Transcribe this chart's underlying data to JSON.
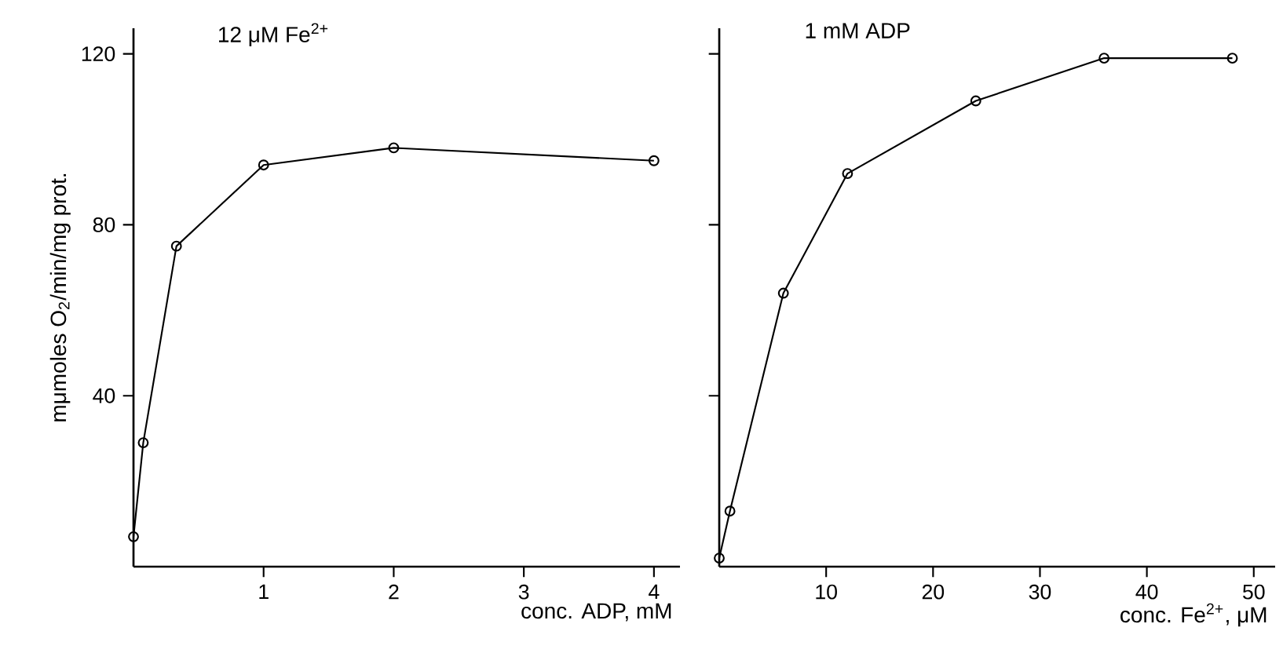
{
  "chart_data": [
    {
      "type": "line",
      "title": "12 μM Fe$^{2+}$",
      "xlabel": "conc. ADP, mM",
      "ylabel": "mμmoles O$_{2}$/min/mg prot.",
      "marker": "circle",
      "line_style": "solid",
      "x": [
        0,
        0.075,
        0.33,
        1,
        2,
        4
      ],
      "series": [
        {
          "color": "#000000",
          "values": [
            7,
            29,
            75,
            94,
            98,
            95
          ]
        }
      ],
      "xlim": [
        0,
        4.2
      ],
      "ylim": [
        0,
        126
      ],
      "xticks": [
        1,
        2,
        3,
        4
      ],
      "yticks": [
        40,
        80,
        120
      ]
    },
    {
      "type": "line",
      "title": "1 mM ADP",
      "xlabel": "conc. Fe$^{2+}$, μM",
      "marker": "circle",
      "line_style": "solid",
      "x": [
        0,
        1,
        6,
        12,
        24,
        36,
        48
      ],
      "series": [
        {
          "color": "#000000",
          "values": [
            2,
            13,
            64,
            92,
            109,
            119,
            119
          ]
        }
      ],
      "xlim": [
        0,
        52
      ],
      "ylim": [
        0,
        126
      ],
      "xticks": [
        10,
        20,
        30,
        40,
        50
      ],
      "yticks": [
        {
          "value": 40,
          "label": null
        },
        {
          "value": 80,
          "label": null
        },
        {
          "value": 120,
          "label": null
        }
      ],
      "tick_labels": "x"
    }
  ]
}
